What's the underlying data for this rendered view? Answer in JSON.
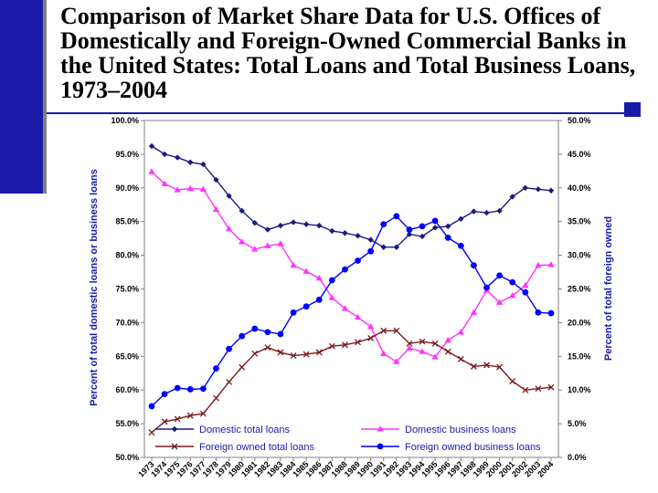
{
  "slide": {
    "title": "Comparison of Market Share Data for U.S. Offices of Domestically and Foreign-Owned Commercial Banks in the United States: Total Loans and Total Business Loans, 1973–2004"
  },
  "colors": {
    "bar": "#1a1aa8",
    "domestic_total": "#1a1a80",
    "domestic_business": "#ff33ff",
    "foreign_total": "#7a1a1a",
    "foreign_business": "#0000ff"
  },
  "chart_data": {
    "type": "line",
    "x": [
      "1973",
      "1974",
      "1975",
      "1976",
      "1977",
      "1978",
      "1979",
      "1980",
      "1981",
      "1982",
      "1983",
      "1984",
      "1985",
      "1986",
      "1987",
      "1988",
      "1989",
      "1990",
      "1991",
      "1992",
      "1993",
      "1994",
      "1995",
      "1996",
      "1997",
      "1998",
      "1999",
      "2000",
      "2001",
      "2002",
      "2003",
      "2004"
    ],
    "ylabel_left": "Percent of total domestic loans or business loans",
    "ylabel_right": "Percent of total foreign owned",
    "ylim_left": [
      50,
      100
    ],
    "ylim_right": [
      0,
      50
    ],
    "yticks_left": [
      "100.0%",
      "95.0%",
      "90.0%",
      "85.0%",
      "80.0%",
      "75.0%",
      "70.0%",
      "65.0%",
      "60.0%",
      "55.0%",
      "50.0%"
    ],
    "yticks_right": [
      "50.0%",
      "45.0%",
      "40.0%",
      "35.0%",
      "30.0%",
      "25.0%",
      "20.0%",
      "15.0%",
      "10.0%",
      "5.0%",
      "0.0%"
    ],
    "grid": false,
    "legend_position": "bottom",
    "series": [
      {
        "name": "Domestic total loans",
        "axis": "left",
        "marker": "diamond",
        "color": "#1a1a80",
        "values": [
          96.2,
          95.0,
          94.5,
          93.8,
          93.5,
          91.2,
          88.8,
          86.6,
          84.8,
          83.8,
          84.4,
          84.9,
          84.6,
          84.4,
          83.6,
          83.3,
          82.9,
          82.3,
          81.2,
          81.2,
          83.1,
          82.8,
          84.1,
          84.3,
          85.4,
          86.5,
          86.3,
          86.6,
          88.7,
          90.0,
          89.8,
          89.6
        ]
      },
      {
        "name": "Domestic business loans",
        "axis": "left",
        "marker": "triangle",
        "color": "#ff33ff",
        "values": [
          92.4,
          90.6,
          89.7,
          89.9,
          89.8,
          86.8,
          83.9,
          82.0,
          80.9,
          81.4,
          81.7,
          78.5,
          77.6,
          76.6,
          73.7,
          72.1,
          70.8,
          69.4,
          65.4,
          64.2,
          66.2,
          65.7,
          64.9,
          67.4,
          68.6,
          71.5,
          74.8,
          73.0,
          74.0,
          75.5,
          78.5,
          78.6
        ]
      },
      {
        "name": "Foreign owned total loans",
        "axis": "right",
        "marker": "x",
        "color": "#7a1a1a",
        "values": [
          3.7,
          5.3,
          5.7,
          6.2,
          6.5,
          8.8,
          11.2,
          13.4,
          15.4,
          16.3,
          15.6,
          15.1,
          15.3,
          15.6,
          16.5,
          16.7,
          17.1,
          17.7,
          18.8,
          18.8,
          16.9,
          17.2,
          16.9,
          15.7,
          14.6,
          13.5,
          13.7,
          13.4,
          11.3,
          10.0,
          10.2,
          10.4
        ]
      },
      {
        "name": "Foreign owned business loans",
        "axis": "right",
        "marker": "circle",
        "color": "#0000ff",
        "values": [
          7.6,
          9.4,
          10.3,
          10.1,
          10.2,
          13.2,
          16.1,
          18.0,
          19.1,
          18.6,
          18.3,
          21.5,
          22.4,
          23.4,
          26.3,
          27.9,
          29.2,
          30.6,
          34.6,
          35.8,
          33.8,
          34.3,
          35.1,
          32.6,
          31.4,
          28.5,
          25.2,
          27.0,
          26.0,
          24.5,
          21.5,
          21.4
        ]
      }
    ]
  }
}
